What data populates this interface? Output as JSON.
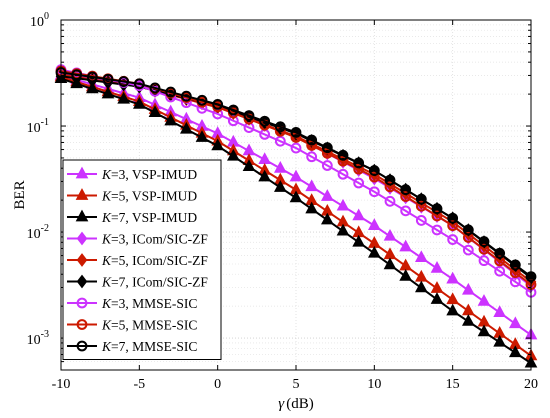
{
  "chart_data": {
    "type": "line",
    "xlabel_symbol": "γ",
    "xlabel_unit": "(dB)",
    "ylabel": "BER",
    "y_scale": "log",
    "xlim": [
      -10,
      20
    ],
    "ylim": [
      0.0005,
      1
    ],
    "x_ticks": [
      -10,
      -5,
      0,
      5,
      10,
      15,
      20
    ],
    "x_tick_labels": [
      "-10",
      "-5",
      "0",
      "5",
      "10",
      "15",
      "20"
    ],
    "y_ticks": [
      {
        "value": 1,
        "base": "10",
        "exp": "0"
      },
      {
        "value": 0.1,
        "base": "10",
        "exp": "-1"
      },
      {
        "value": 0.01,
        "base": "10",
        "exp": "-2"
      },
      {
        "value": 0.001,
        "base": "10",
        "exp": "-3"
      }
    ],
    "grid": true,
    "legend_position": "bottom-left",
    "series": [
      {
        "name": "=3, VSP-IMUD",
        "k_symbol": "K",
        "color": "#cc33ff",
        "marker": "triangle",
        "fill": true,
        "anchors": [
          [
            -10,
            0.3
          ],
          [
            -5,
            0.185
          ],
          [
            0,
            0.085
          ],
          [
            5,
            0.033
          ],
          [
            10,
            0.0115
          ],
          [
            15,
            0.0036
          ],
          [
            20,
            0.00107
          ]
        ]
      },
      {
        "name": "=5, VSP-IMUD",
        "k_symbol": "K",
        "color": "#cc1a00",
        "marker": "triangle",
        "fill": true,
        "anchors": [
          [
            -10,
            0.29
          ],
          [
            -5,
            0.17
          ],
          [
            0,
            0.072
          ],
          [
            5,
            0.025
          ],
          [
            10,
            0.0078
          ],
          [
            15,
            0.0023
          ],
          [
            20,
            0.00068
          ]
        ]
      },
      {
        "name": "=7, VSP-IMUD",
        "k_symbol": "K",
        "color": "#000000",
        "marker": "triangle",
        "fill": true,
        "anchors": [
          [
            -10,
            0.28
          ],
          [
            -5,
            0.16
          ],
          [
            0,
            0.065
          ],
          [
            5,
            0.021
          ],
          [
            10,
            0.0063
          ],
          [
            15,
            0.0018
          ],
          [
            20,
            0.00058
          ]
        ]
      },
      {
        "name": "=3, ICom/SIC-ZF",
        "k_symbol": "K",
        "color": "#cc33ff",
        "marker": "diamond",
        "fill": true,
        "anchors": [
          [
            -10,
            0.315
          ],
          [
            -5,
            0.24
          ],
          [
            0,
            0.152
          ],
          [
            5,
            0.079
          ],
          [
            10,
            0.032
          ],
          [
            15,
            0.0115
          ],
          [
            20,
            0.0031
          ]
        ]
      },
      {
        "name": "=5, ICom/SIC-ZF",
        "k_symbol": "K",
        "color": "#cc1a00",
        "marker": "diamond",
        "fill": true,
        "anchors": [
          [
            -10,
            0.305
          ],
          [
            -5,
            0.235
          ],
          [
            0,
            0.15
          ],
          [
            5,
            0.08
          ],
          [
            10,
            0.035
          ],
          [
            15,
            0.0125
          ],
          [
            20,
            0.0034
          ]
        ]
      },
      {
        "name": "=7, ICom/SIC-ZF",
        "k_symbol": "K",
        "color": "#000000",
        "marker": "diamond",
        "fill": true,
        "anchors": [
          [
            -10,
            0.295
          ],
          [
            -5,
            0.235
          ],
          [
            0,
            0.155
          ],
          [
            5,
            0.085
          ],
          [
            10,
            0.038
          ],
          [
            15,
            0.0135
          ],
          [
            20,
            0.0037
          ]
        ]
      },
      {
        "name": "=3, MMSE-SIC",
        "k_symbol": "K",
        "color": "#cc33ff",
        "marker": "circle",
        "fill": false,
        "anchors": [
          [
            -10,
            0.34
          ],
          [
            -5,
            0.24
          ],
          [
            0,
            0.13
          ],
          [
            5,
            0.062
          ],
          [
            10,
            0.024
          ],
          [
            15,
            0.0085
          ],
          [
            20,
            0.0027
          ]
        ]
      },
      {
        "name": "=5, MMSE-SIC",
        "k_symbol": "K",
        "color": "#cc1a00",
        "marker": "circle",
        "fill": false,
        "anchors": [
          [
            -10,
            0.33
          ],
          [
            -5,
            0.25
          ],
          [
            0,
            0.152
          ],
          [
            5,
            0.078
          ],
          [
            10,
            0.033
          ],
          [
            15,
            0.0115
          ],
          [
            20,
            0.0032
          ]
        ]
      },
      {
        "name": "=7, MMSE-SIC",
        "k_symbol": "K",
        "color": "#000000",
        "marker": "circle",
        "fill": false,
        "anchors": [
          [
            -10,
            0.32
          ],
          [
            -5,
            0.25
          ],
          [
            0,
            0.16
          ],
          [
            5,
            0.087
          ],
          [
            10,
            0.038
          ],
          [
            15,
            0.0135
          ],
          [
            20,
            0.0038
          ]
        ]
      }
    ]
  }
}
